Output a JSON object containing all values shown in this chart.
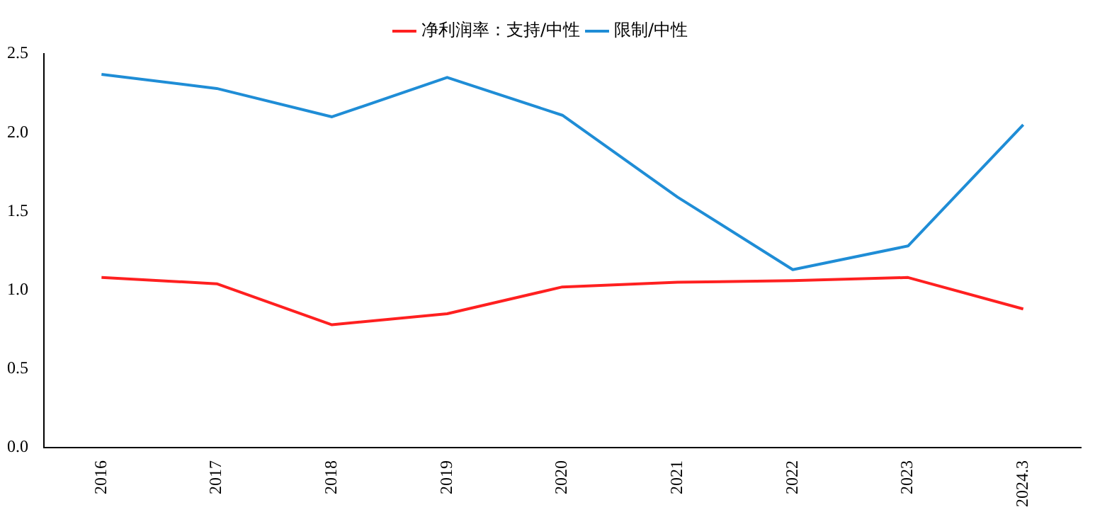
{
  "chart_data": {
    "type": "line",
    "categories": [
      "2016",
      "2017",
      "2018",
      "2019",
      "2020",
      "2021",
      "2022",
      "2023",
      "2024.3"
    ],
    "series": [
      {
        "name": "净利润率：支持/中性",
        "color": "#ff2020",
        "values": [
          1.08,
          1.04,
          0.78,
          0.85,
          1.02,
          1.05,
          1.06,
          1.08,
          0.88
        ]
      },
      {
        "name": "限制/中性",
        "color": "#1f8dd6",
        "values": [
          2.37,
          2.28,
          2.1,
          2.35,
          2.11,
          1.59,
          1.13,
          1.28,
          2.05
        ]
      }
    ],
    "ylim": [
      0,
      2.5
    ],
    "yticks": [
      {
        "value": 0,
        "label": "0.0"
      },
      {
        "value": 0.5,
        "label": "0.5"
      },
      {
        "value": 1,
        "label": "1.0"
      },
      {
        "value": 1.5,
        "label": "1.5"
      },
      {
        "value": 2,
        "label": "2.0"
      },
      {
        "value": 2.5,
        "label": "2.5"
      }
    ],
    "grid": false,
    "legend": "top",
    "marker": "none",
    "line_style": "solid"
  }
}
